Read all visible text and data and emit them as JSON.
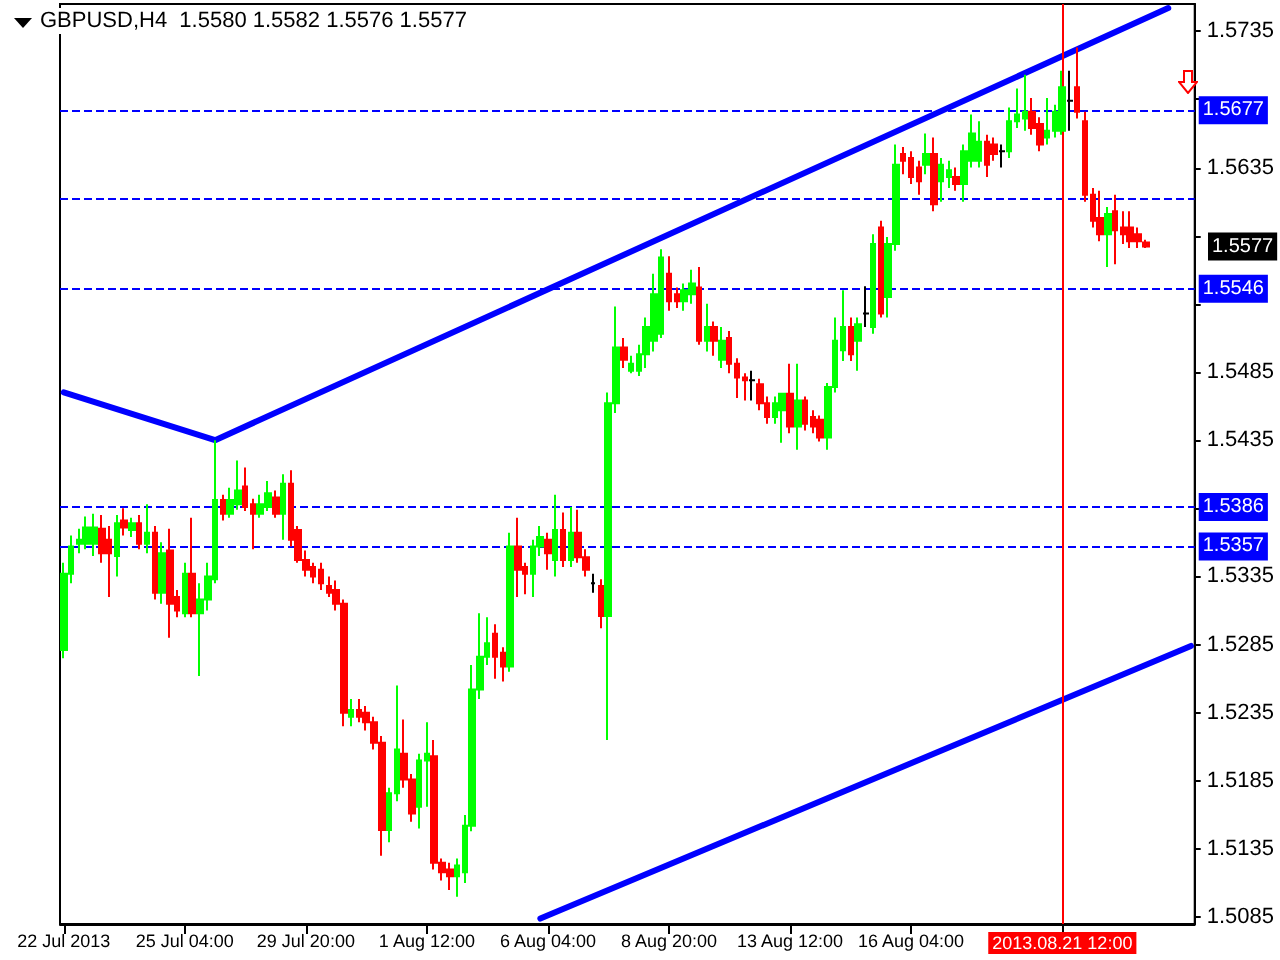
{
  "chart_data": {
    "type": "candlestick",
    "title": "GBPUSD,H4  1.5580 1.5582 1.5576 1.5577",
    "categories": [
      "22 Jul 2013",
      null,
      null,
      null,
      null,
      null,
      null,
      null,
      null,
      null,
      null,
      null,
      null,
      null,
      null,
      null,
      "25 Jul 04:00",
      null,
      null,
      null,
      null,
      null,
      null,
      null,
      null,
      null,
      null,
      null,
      null,
      null,
      null,
      null,
      "29 Jul 20:00",
      null,
      null,
      null,
      null,
      null,
      null,
      null,
      null,
      null,
      null,
      null,
      null,
      null,
      null,
      null,
      "1 Aug 12:00",
      null,
      null,
      null,
      null,
      null,
      null,
      null,
      null,
      null,
      null,
      null,
      null,
      null,
      null,
      null,
      "6 Aug 04:00",
      null,
      null,
      null,
      null,
      null,
      null,
      null,
      null,
      null,
      null,
      null,
      null,
      null,
      null,
      null,
      "8 Aug 20:00",
      null,
      null,
      null,
      null,
      null,
      null,
      null,
      null,
      null,
      null,
      null,
      null,
      null,
      null,
      null,
      "13 Aug 12:00",
      null,
      null,
      null,
      null,
      null,
      null,
      null,
      null,
      null,
      null,
      null,
      null,
      null,
      null,
      null,
      "16 Aug 04:00",
      null,
      null,
      null,
      null,
      null,
      null,
      null,
      null,
      null,
      null,
      null,
      null,
      null,
      null,
      null,
      null,
      null,
      null,
      null,
      "2013.08.21 12:00",
      null,
      null,
      null,
      null,
      null,
      null,
      null,
      null,
      null,
      null,
      null,
      null,
      null,
      null,
      null,
      null,
      null
    ],
    "ohlc": [
      [
        1.5281,
        1.5345,
        1.5275,
        1.5337
      ],
      [
        1.5337,
        1.5365,
        1.533,
        1.5357
      ],
      [
        1.5359,
        1.537,
        1.5352,
        1.5362
      ],
      [
        1.5359,
        1.5379,
        1.5355,
        1.5371
      ],
      [
        1.5359,
        1.5381,
        1.535,
        1.5371
      ],
      [
        1.537,
        1.538,
        1.5345,
        1.5352
      ],
      [
        1.5362,
        1.5372,
        1.532,
        1.5352
      ],
      [
        1.535,
        1.538,
        1.5335,
        1.5374
      ],
      [
        1.5376,
        1.5385,
        1.5365,
        1.5371
      ],
      [
        1.5369,
        1.5378,
        1.5364,
        1.5374
      ],
      [
        1.5374,
        1.538,
        1.5355,
        1.5359
      ],
      [
        1.5359,
        1.5388,
        1.5352,
        1.5367
      ],
      [
        1.5367,
        1.5372,
        1.5318,
        1.5323
      ],
      [
        1.5323,
        1.536,
        1.5315,
        1.5352
      ],
      [
        1.5354,
        1.537,
        1.529,
        1.5315
      ],
      [
        1.532,
        1.5325,
        1.5305,
        1.531
      ],
      [
        1.5308,
        1.5345,
        1.5305,
        1.5337
      ],
      [
        1.5337,
        1.5378,
        1.5305,
        1.5308
      ],
      [
        1.5308,
        1.533,
        1.5262,
        1.5318
      ],
      [
        1.5318,
        1.5345,
        1.531,
        1.5335
      ],
      [
        1.5333,
        1.5435,
        1.533,
        1.5391
      ],
      [
        1.5391,
        1.5395,
        1.5376,
        1.5381
      ],
      [
        1.5381,
        1.54,
        1.5378,
        1.5391
      ],
      [
        1.5388,
        1.542,
        1.5384,
        1.5398
      ],
      [
        1.5401,
        1.5415,
        1.5383,
        1.5386
      ],
      [
        1.5388,
        1.5392,
        1.5355,
        1.5381
      ],
      [
        1.5381,
        1.5395,
        1.5378,
        1.5388
      ],
      [
        1.5386,
        1.5405,
        1.5383,
        1.5396
      ],
      [
        1.5393,
        1.5398,
        1.5378,
        1.5381
      ],
      [
        1.5381,
        1.541,
        1.5362,
        1.5403
      ],
      [
        1.5403,
        1.5413,
        1.5357,
        1.5362
      ],
      [
        1.5369,
        1.5372,
        1.5345,
        1.5347
      ],
      [
        1.5347,
        1.5354,
        1.5335,
        1.534
      ],
      [
        1.5342,
        1.5345,
        1.533,
        1.5335
      ],
      [
        1.534,
        1.5345,
        1.5325,
        1.533
      ],
      [
        1.5328,
        1.5335,
        1.532,
        1.5323
      ],
      [
        1.5325,
        1.5332,
        1.531,
        1.5315
      ],
      [
        1.5315,
        1.5318,
        1.5225,
        1.5235
      ],
      [
        1.5232,
        1.5245,
        1.5225,
        1.5237
      ],
      [
        1.5237,
        1.5245,
        1.5228,
        1.5232
      ],
      [
        1.5235,
        1.524,
        1.5222,
        1.5228
      ],
      [
        1.5228,
        1.5232,
        1.5208,
        1.5213
      ],
      [
        1.5213,
        1.5218,
        1.513,
        1.5149
      ],
      [
        1.5149,
        1.518,
        1.514,
        1.5176
      ],
      [
        1.5176,
        1.5255,
        1.517,
        1.5208
      ],
      [
        1.5205,
        1.523,
        1.518,
        1.5186
      ],
      [
        1.5186,
        1.519,
        1.5155,
        1.5161
      ],
      [
        1.5166,
        1.5205,
        1.515,
        1.52
      ],
      [
        1.52,
        1.5228,
        1.5166,
        1.5205
      ],
      [
        1.5203,
        1.5215,
        1.512,
        1.5125
      ],
      [
        1.5125,
        1.5128,
        1.5112,
        1.5118
      ],
      [
        1.512,
        1.5125,
        1.5105,
        1.5115
      ],
      [
        1.5115,
        1.5128,
        1.51,
        1.5123
      ],
      [
        1.5118,
        1.516,
        1.511,
        1.5152
      ],
      [
        1.5152,
        1.527,
        1.5148,
        1.5252
      ],
      [
        1.5252,
        1.5308,
        1.5245,
        1.5276
      ],
      [
        1.5276,
        1.5305,
        1.527,
        1.5286
      ],
      [
        1.5293,
        1.53,
        1.526,
        1.5276
      ],
      [
        1.5279,
        1.5283,
        1.5258,
        1.5269
      ],
      [
        1.5269,
        1.5367,
        1.5265,
        1.5357
      ],
      [
        1.5357,
        1.5378,
        1.532,
        1.534
      ],
      [
        1.5342,
        1.5345,
        1.5322,
        1.5337
      ],
      [
        1.5337,
        1.5362,
        1.532,
        1.5357
      ],
      [
        1.5357,
        1.5372,
        1.535,
        1.5364
      ],
      [
        1.5362,
        1.5367,
        1.534,
        1.5352
      ],
      [
        1.5347,
        1.5395,
        1.5335,
        1.5369
      ],
      [
        1.5369,
        1.5382,
        1.5342,
        1.5347
      ],
      [
        1.5347,
        1.5386,
        1.5342,
        1.5367
      ],
      [
        1.5367,
        1.5384,
        1.5345,
        1.5349
      ],
      [
        1.5349,
        1.5355,
        1.5335,
        1.534
      ],
      [
        1.533,
        1.5337,
        1.5323,
        1.533
      ],
      [
        1.5328,
        1.5333,
        1.5297,
        1.5306
      ],
      [
        1.5306,
        1.547,
        1.5215,
        1.5462
      ],
      [
        1.5462,
        1.5533,
        1.5455,
        1.5503
      ],
      [
        1.5503,
        1.551,
        1.5488,
        1.5494
      ],
      [
        1.5486,
        1.5497,
        1.5484,
        1.5491
      ],
      [
        1.5486,
        1.5505,
        1.5482,
        1.5498
      ],
      [
        1.5498,
        1.5525,
        1.5488,
        1.5518
      ],
      [
        1.5508,
        1.5557,
        1.55,
        1.5542
      ],
      [
        1.5513,
        1.5575,
        1.551,
        1.5569
      ],
      [
        1.5557,
        1.557,
        1.553,
        1.5537
      ],
      [
        1.5542,
        1.5547,
        1.5532,
        1.5537
      ],
      [
        1.5537,
        1.555,
        1.553,
        1.5545
      ],
      [
        1.5542,
        1.556,
        1.5535,
        1.555
      ],
      [
        1.5547,
        1.5562,
        1.5505,
        1.5508
      ],
      [
        1.5508,
        1.5535,
        1.55,
        1.5518
      ],
      [
        1.5518,
        1.5522,
        1.5497,
        1.5508
      ],
      [
        1.5494,
        1.5518,
        1.5488,
        1.5508
      ],
      [
        1.551,
        1.5515,
        1.5484,
        1.5491
      ],
      [
        1.5491,
        1.5495,
        1.5466,
        1.5481
      ],
      [
        1.5481,
        1.5484,
        1.5464,
        1.5479
      ],
      [
        1.5479,
        1.5486,
        1.5464,
        1.5479
      ],
      [
        1.5476,
        1.548,
        1.5457,
        1.5462
      ],
      [
        1.5462,
        1.5467,
        1.5447,
        1.5452
      ],
      [
        1.5452,
        1.5467,
        1.5447,
        1.5462
      ],
      [
        1.5457,
        1.5469,
        1.5433,
        1.5469
      ],
      [
        1.5469,
        1.5491,
        1.544,
        1.5445
      ],
      [
        1.5445,
        1.5491,
        1.5428,
        1.5464
      ],
      [
        1.5464,
        1.5467,
        1.5442,
        1.5447
      ],
      [
        1.5452,
        1.5457,
        1.544,
        1.5445
      ],
      [
        1.545,
        1.5453,
        1.5434,
        1.5437
      ],
      [
        1.5437,
        1.5477,
        1.5428,
        1.5474
      ],
      [
        1.5474,
        1.5525,
        1.547,
        1.5508
      ],
      [
        1.5501,
        1.5545,
        1.5493,
        1.5518
      ],
      [
        1.5518,
        1.5525,
        1.5493,
        1.5498
      ],
      [
        1.5508,
        1.5525,
        1.5486,
        1.552
      ],
      [
        1.5528,
        1.5548,
        1.5518,
        1.5528
      ],
      [
        1.5518,
        1.5586,
        1.5513,
        1.5579
      ],
      [
        1.5591,
        1.5596,
        1.5525,
        1.5528
      ],
      [
        1.554,
        1.5584,
        1.5525,
        1.5579
      ],
      [
        1.5579,
        1.5652,
        1.5574,
        1.5637
      ],
      [
        1.5645,
        1.565,
        1.563,
        1.564
      ],
      [
        1.5642,
        1.5647,
        1.5623,
        1.5628
      ],
      [
        1.5635,
        1.564,
        1.5615,
        1.5625
      ],
      [
        1.5637,
        1.566,
        1.563,
        1.5645
      ],
      [
        1.5645,
        1.5657,
        1.5603,
        1.5608
      ],
      [
        1.5625,
        1.5642,
        1.561,
        1.5637
      ],
      [
        1.5628,
        1.564,
        1.562,
        1.5633
      ],
      [
        1.5628,
        1.5635,
        1.5618,
        1.5623
      ],
      [
        1.5623,
        1.5652,
        1.561,
        1.5647
      ],
      [
        1.564,
        1.5674,
        1.5635,
        1.566
      ],
      [
        1.564,
        1.5669,
        1.5635,
        1.5654
      ],
      [
        1.5654,
        1.5659,
        1.5628,
        1.5637
      ],
      [
        1.5652,
        1.5657,
        1.564,
        1.5645
      ],
      [
        1.5647,
        1.5652,
        1.5635,
        1.5647
      ],
      [
        1.5647,
        1.5679,
        1.5642,
        1.5669
      ],
      [
        1.5669,
        1.5693,
        1.5664,
        1.5674
      ],
      [
        1.5671,
        1.5703,
        1.5662,
        1.5676
      ],
      [
        1.5676,
        1.5686,
        1.5659,
        1.5664
      ],
      [
        1.5667,
        1.5672,
        1.5647,
        1.5652
      ],
      [
        1.5657,
        1.5686,
        1.5652,
        1.5662
      ],
      [
        1.5662,
        1.5681,
        1.5657,
        1.5676
      ],
      [
        1.5662,
        1.5706,
        1.5659,
        1.5694
      ],
      [
        1.5684,
        1.5706,
        1.5662,
        1.5684
      ],
      [
        1.5694,
        1.5723,
        1.5671,
        1.5676
      ],
      [
        1.5669,
        1.5676,
        1.561,
        1.5615
      ],
      [
        1.5615,
        1.562,
        1.5591,
        1.5596
      ],
      [
        1.5598,
        1.5618,
        1.5581,
        1.5586
      ],
      [
        1.5586,
        1.5606,
        1.5562,
        1.5601
      ],
      [
        1.5603,
        1.5615,
        1.5564,
        1.5589
      ],
      [
        1.5591,
        1.5603,
        1.5579,
        1.5586
      ],
      [
        1.5591,
        1.5603,
        1.5576,
        1.5581
      ],
      [
        1.5586,
        1.5591,
        1.5576,
        1.5581
      ],
      [
        1.558,
        1.5582,
        1.5576,
        1.5577
      ],
      null,
      null,
      null,
      null,
      null,
      null
    ],
    "colors": [
      "#00ff00",
      "#00ff00",
      "#00ff00",
      "#00ff00",
      "#00ff00",
      "#ff0000",
      "#ff0000",
      "#00ff00",
      "#ff0000",
      "#00ff00",
      "#ff0000",
      "#00ff00",
      "#ff0000",
      "#00ff00",
      "#ff0000",
      "#ff0000",
      "#00ff00",
      "#ff0000",
      "#00ff00",
      "#00ff00",
      "#00ff00",
      "#ff0000",
      "#00ff00",
      "#00ff00",
      "#ff0000",
      "#ff0000",
      "#00ff00",
      "#00ff00",
      "#ff0000",
      "#00ff00",
      "#ff0000",
      "#ff0000",
      "#ff0000",
      "#ff0000",
      "#ff0000",
      "#ff0000",
      "#ff0000",
      "#ff0000",
      "#00ff00",
      "#ff0000",
      "#ff0000",
      "#ff0000",
      "#ff0000",
      "#00ff00",
      "#00ff00",
      "#ff0000",
      "#ff0000",
      "#00ff00",
      "#00ff00",
      "#ff0000",
      "#ff0000",
      "#ff0000",
      "#00ff00",
      "#00ff00",
      "#00ff00",
      "#00ff00",
      "#00ff00",
      "#ff0000",
      "#ff0000",
      "#00ff00",
      "#ff0000",
      "#ff0000",
      "#00ff00",
      "#00ff00",
      "#ff0000",
      "#00ff00",
      "#ff0000",
      "#00ff00",
      "#ff0000",
      "#ff0000",
      "#000000",
      "#ff0000",
      "#00ff00",
      "#00ff00",
      "#ff0000",
      "#00ff00",
      "#00ff00",
      "#00ff00",
      "#00ff00",
      "#00ff00",
      "#ff0000",
      "#ff0000",
      "#00ff00",
      "#00ff00",
      "#ff0000",
      "#00ff00",
      "#ff0000",
      "#00ff00",
      "#ff0000",
      "#ff0000",
      "#ff0000",
      "#000000",
      "#ff0000",
      "#ff0000",
      "#00ff00",
      "#00ff00",
      "#ff0000",
      "#00ff00",
      "#ff0000",
      "#ff0000",
      "#ff0000",
      "#00ff00",
      "#00ff00",
      "#00ff00",
      "#ff0000",
      "#00ff00",
      "#000000",
      "#00ff00",
      "#ff0000",
      "#00ff00",
      "#00ff00",
      "#ff0000",
      "#ff0000",
      "#ff0000",
      "#00ff00",
      "#ff0000",
      "#00ff00",
      "#00ff00",
      "#ff0000",
      "#00ff00",
      "#00ff00",
      "#00ff00",
      "#ff0000",
      "#ff0000",
      "#000000",
      "#00ff00",
      "#00ff00",
      "#00ff00",
      "#ff0000",
      "#ff0000",
      "#00ff00",
      "#00ff00",
      "#00ff00",
      "#000000",
      "#ff0000",
      "#ff0000",
      "#ff0000",
      "#ff0000",
      "#00ff00",
      "#ff0000",
      "#ff0000",
      "#ff0000",
      "#ff0000",
      "#ff0000",
      null,
      null,
      null,
      null,
      null,
      null
    ],
    "series": [
      {
        "type": "line",
        "color": "#0000ff",
        "values": [
          1.547,
          null,
          null,
          null,
          null,
          null,
          null,
          null,
          null,
          null,
          null,
          null,
          null,
          null,
          null,
          null,
          null,
          null,
          null,
          null,
          1.5435,
          null,
          null,
          null,
          null,
          null,
          null,
          null,
          null,
          null,
          null,
          null,
          null,
          null,
          null,
          null,
          null,
          null,
          null,
          null,
          null,
          null,
          null,
          null,
          null,
          null,
          null,
          null,
          null,
          null,
          null,
          null,
          null,
          null,
          null,
          null,
          null,
          null,
          null,
          null,
          null,
          null,
          null,
          null,
          null,
          null,
          null,
          null,
          null,
          null,
          null,
          null,
          null,
          null,
          null,
          null,
          null,
          null,
          null,
          null,
          null,
          null,
          null,
          null,
          null,
          null,
          null,
          null,
          null,
          null,
          null,
          null,
          null,
          null,
          null,
          null,
          null,
          null,
          null,
          null,
          null,
          null,
          null,
          null,
          null,
          null,
          null,
          null,
          null,
          null,
          null,
          null,
          null,
          null,
          null,
          null,
          null,
          null,
          null,
          null,
          null,
          null,
          null,
          null,
          null,
          null,
          null,
          null,
          null,
          null,
          null,
          null,
          null,
          null,
          null,
          null,
          null,
          null,
          null,
          null,
          null,
          null,
          null,
          null,
          null,
          null,
          1.5752,
          null,
          null,
          null
        ]
      },
      {
        "type": "line",
        "color": "#0000ff",
        "values": [
          null,
          null,
          null,
          null,
          null,
          null,
          null,
          null,
          null,
          null,
          null,
          null,
          null,
          null,
          null,
          null,
          null,
          null,
          null,
          null,
          null,
          null,
          null,
          null,
          null,
          null,
          null,
          null,
          null,
          null,
          null,
          null,
          null,
          null,
          null,
          null,
          null,
          null,
          null,
          null,
          null,
          null,
          null,
          null,
          null,
          null,
          null,
          null,
          null,
          null,
          null,
          null,
          null,
          null,
          null,
          null,
          null,
          null,
          null,
          null,
          null,
          null,
          null,
          1.5084,
          null,
          null,
          null,
          null,
          null,
          null,
          null,
          null,
          null,
          null,
          null,
          null,
          null,
          null,
          null,
          null,
          null,
          null,
          null,
          null,
          null,
          null,
          null,
          null,
          null,
          null,
          null,
          null,
          null,
          null,
          null,
          null,
          null,
          null,
          null,
          null,
          null,
          null,
          null,
          null,
          null,
          null,
          null,
          null,
          null,
          null,
          null,
          null,
          null,
          null,
          null,
          null,
          null,
          null,
          null,
          null,
          null,
          null,
          null,
          null,
          null,
          null,
          null,
          null,
          null,
          null,
          null,
          null,
          null,
          null,
          null,
          null,
          null,
          null,
          null,
          null,
          null,
          null,
          null,
          null,
          null,
          null,
          null,
          null,
          null,
          1.5284
        ]
      }
    ],
    "ylim": [
      1.508,
      1.5755
    ],
    "yticks": [
      1.5085,
      1.5135,
      1.5185,
      1.5235,
      1.5285,
      1.5335,
      {
        "value": 1.5385,
        "label": null
      },
      1.5435,
      1.5485,
      {
        "value": 1.5535,
        "label": null
      },
      {
        "value": 1.5585,
        "label": null
      },
      1.5635,
      {
        "value": 1.5685,
        "label": null
      },
      1.5735
    ],
    "ref_lines": [
      {
        "axis": "y",
        "value": 1.5677,
        "label": "1.5677",
        "color": "#0000ff",
        "line_style": "dashed"
      },
      {
        "axis": "y",
        "value": 1.5613,
        "color": "#0000ff",
        "line_style": "dashed"
      },
      {
        "axis": "y",
        "value": 1.5546,
        "label": "1.5546",
        "color": "#0000ff",
        "line_style": "dashed"
      },
      {
        "axis": "y",
        "value": 1.5386,
        "label": "1.5386",
        "color": "#0000ff",
        "line_style": "dashed"
      },
      {
        "axis": "y",
        "value": 1.5357,
        "label": "1.5357",
        "color": "#0000ff",
        "line_style": "dashed"
      },
      {
        "axis": "x",
        "value": "2013.08.21 12:00",
        "color": "#ff0000",
        "line_style": "solid"
      }
    ],
    "annotations": [
      "1.5577"
    ]
  }
}
